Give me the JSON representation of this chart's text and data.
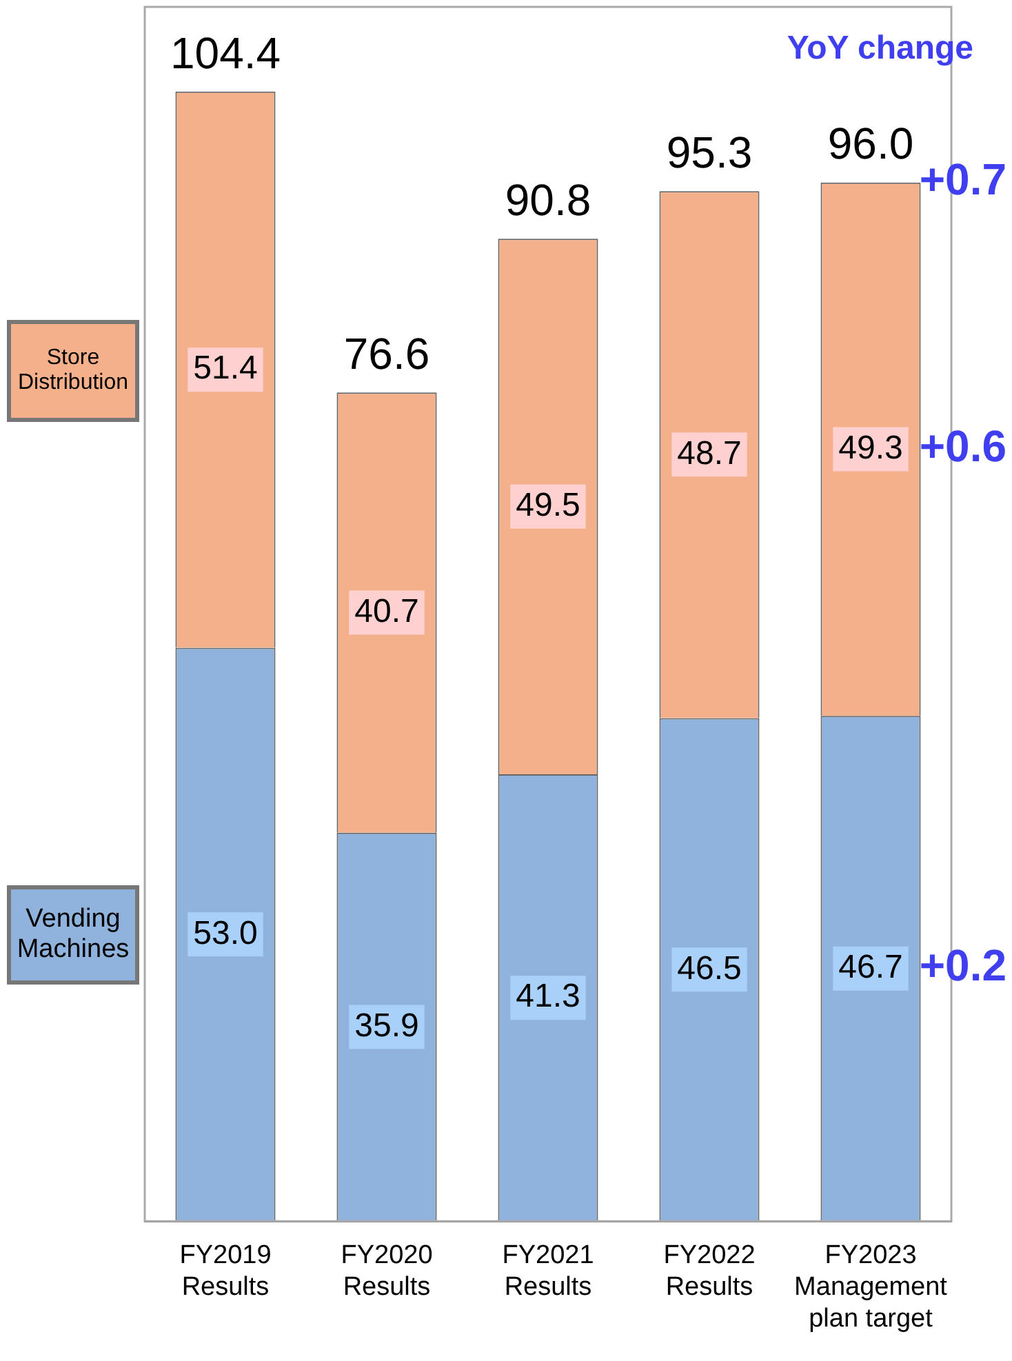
{
  "chart_data": {
    "type": "bar",
    "stacked": true,
    "categories": [
      "FY2019\nResults",
      "FY2020\nResults",
      "FY2021\nResults",
      "FY2022\nResults",
      "FY2023\nManagement\nplan target"
    ],
    "series": [
      {
        "name": "Vending Machines",
        "color": "#8fb3dc",
        "values": [
          53.0,
          35.9,
          41.3,
          46.5,
          46.7
        ],
        "value_labels": [
          "53.0",
          "35.9",
          "41.3",
          "46.5",
          "46.7"
        ]
      },
      {
        "name": "Store Distribution",
        "color": "#f4b08a",
        "values": [
          51.4,
          40.7,
          49.5,
          48.7,
          49.3
        ],
        "value_labels": [
          "51.4",
          "40.7",
          "49.5",
          "48.7",
          "49.3"
        ]
      }
    ],
    "totals": [
      "104.4",
      "76.6",
      "90.8",
      "95.3",
      "96.0"
    ],
    "annotations": [
      "YoY change",
      "+0.7",
      "+0.6",
      "+0.2"
    ],
    "legend": "left",
    "grid": false
  }
}
